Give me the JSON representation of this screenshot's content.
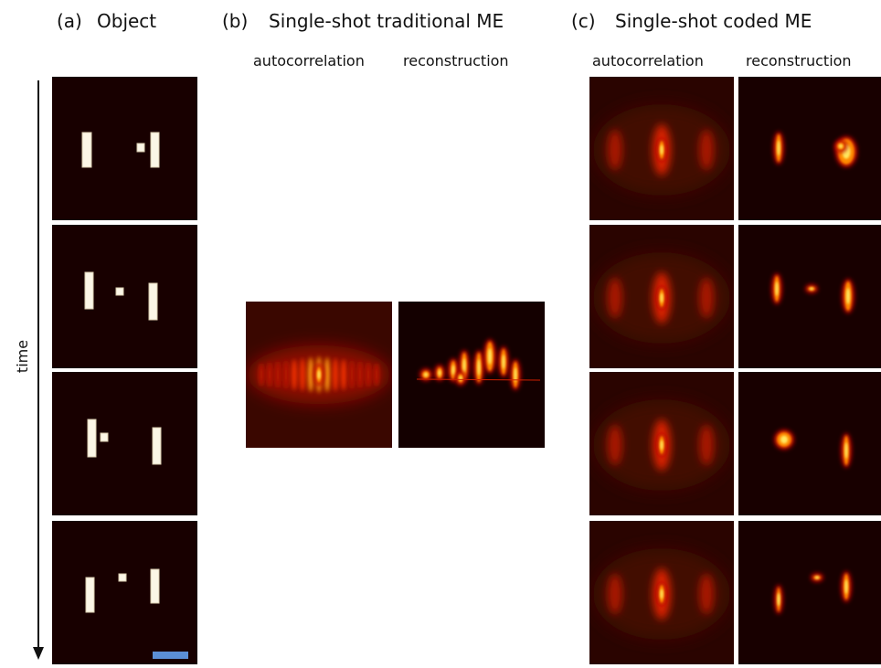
{
  "panels": [
    {
      "label": "(a)",
      "title": "Object"
    },
    {
      "label": "(b)",
      "title": "Single-shot traditional ME",
      "columns": [
        "autocorrelation",
        "reconstruction"
      ]
    },
    {
      "label": "(c)",
      "title": "Single-shot coded ME",
      "columns": [
        "autocorrelation",
        "reconstruction"
      ]
    }
  ],
  "axis": {
    "label": "time"
  }
}
